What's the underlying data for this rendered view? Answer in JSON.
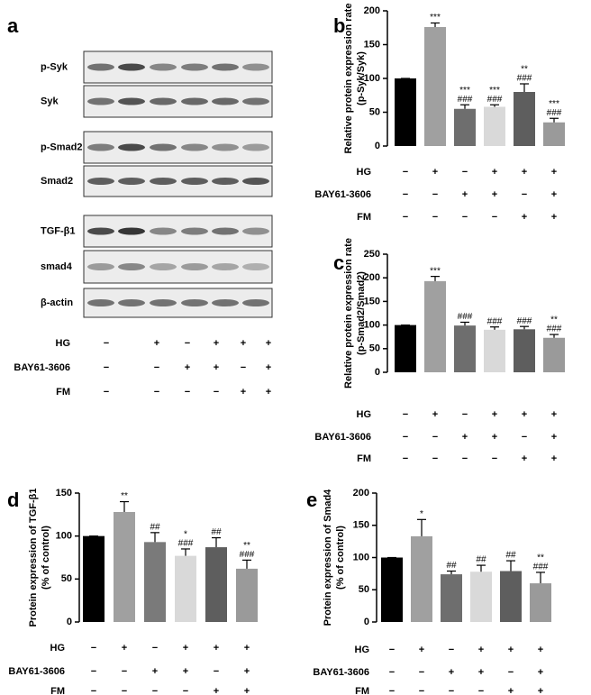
{
  "panel_a": {
    "label": "a",
    "blots": [
      "p-Syk",
      "Syk",
      "p-Smad2",
      "Smad2",
      "TGF-β1",
      "smad4",
      "β-actin"
    ],
    "treatments": [
      {
        "name": "HG",
        "signs": [
          "−",
          "+",
          "−",
          "+",
          "+",
          "+"
        ]
      },
      {
        "name": "BAY61-3606",
        "signs": [
          "−",
          "−",
          "+",
          "+",
          "−",
          "+"
        ]
      },
      {
        "name": "FM",
        "signs": [
          "−",
          "−",
          "−",
          "−",
          "+",
          "+"
        ]
      }
    ]
  },
  "chart_data": [
    {
      "type": "bar",
      "label": "b",
      "ylabel": [
        "Relative protein expression rate",
        "(p-Syk/Syk)"
      ],
      "values": [
        100,
        176,
        55,
        58,
        80,
        35
      ],
      "errors": [
        0,
        6,
        6,
        3,
        12,
        6
      ],
      "colors": [
        "#000000",
        "#a0a0a0",
        "#6e6e6e",
        "#d9d9d9",
        "#5e5e5e",
        "#9a9a9a"
      ],
      "annotations": [
        [],
        [
          "***"
        ],
        [
          "***",
          "###"
        ],
        [
          "***",
          "###"
        ],
        [
          "**",
          "###"
        ],
        [
          "***",
          "###"
        ]
      ],
      "ylim": [
        0,
        200
      ],
      "yticks": [
        0,
        50,
        100,
        150,
        200
      ],
      "treatments": [
        {
          "name": "HG",
          "signs": [
            "−",
            "+",
            "−",
            "+",
            "+",
            "+"
          ]
        },
        {
          "name": "BAY61-3606",
          "signs": [
            "−",
            "−",
            "+",
            "+",
            "−",
            "+"
          ]
        },
        {
          "name": "FM",
          "signs": [
            "−",
            "−",
            "−",
            "−",
            "+",
            "+"
          ]
        }
      ]
    },
    {
      "type": "bar",
      "label": "c",
      "ylabel": [
        "Relative protein expression rate",
        "(p-Smad2/Smad2)"
      ],
      "values": [
        100,
        193,
        99,
        90,
        91,
        73
      ],
      "errors": [
        0,
        10,
        7,
        6,
        6,
        7
      ],
      "colors": [
        "#000000",
        "#a0a0a0",
        "#6e6e6e",
        "#d9d9d9",
        "#5e5e5e",
        "#9a9a9a"
      ],
      "annotations": [
        [],
        [
          "***"
        ],
        [
          "###"
        ],
        [
          "###"
        ],
        [
          "###"
        ],
        [
          "**",
          "###"
        ]
      ],
      "ylim": [
        0,
        250
      ],
      "yticks": [
        0,
        50,
        100,
        150,
        200,
        250
      ],
      "treatments": [
        {
          "name": "HG",
          "signs": [
            "−",
            "+",
            "−",
            "+",
            "+",
            "+"
          ]
        },
        {
          "name": "BAY61-3606",
          "signs": [
            "−",
            "−",
            "+",
            "+",
            "−",
            "+"
          ]
        },
        {
          "name": "FM",
          "signs": [
            "−",
            "−",
            "−",
            "−",
            "+",
            "+"
          ]
        }
      ]
    },
    {
      "type": "bar",
      "label": "d",
      "ylabel": [
        "Protein expression of TGF-β1",
        "(% of control)"
      ],
      "values": [
        100,
        128,
        93,
        77,
        87,
        62
      ],
      "errors": [
        0,
        12,
        11,
        8,
        11,
        10
      ],
      "colors": [
        "#000000",
        "#a0a0a0",
        "#7a7a7a",
        "#d9d9d9",
        "#5e5e5e",
        "#9a9a9a"
      ],
      "annotations": [
        [],
        [
          "**"
        ],
        [
          "##"
        ],
        [
          "*",
          "###"
        ],
        [
          "##"
        ],
        [
          "**",
          "###"
        ]
      ],
      "ylim": [
        0,
        150
      ],
      "yticks": [
        0,
        50,
        100,
        150
      ],
      "treatments": [
        {
          "name": "HG",
          "signs": [
            "−",
            "+",
            "−",
            "+",
            "+",
            "+"
          ]
        },
        {
          "name": "BAY61-3606",
          "signs": [
            "−",
            "−",
            "+",
            "+",
            "−",
            "+"
          ]
        },
        {
          "name": "FM",
          "signs": [
            "−",
            "−",
            "−",
            "−",
            "+",
            "+"
          ]
        }
      ]
    },
    {
      "type": "bar",
      "label": "e",
      "ylabel": [
        "Protein expression of Smad4",
        "(% of control)"
      ],
      "values": [
        100,
        133,
        74,
        78,
        79,
        60
      ],
      "errors": [
        0,
        26,
        5,
        10,
        16,
        17
      ],
      "colors": [
        "#000000",
        "#a0a0a0",
        "#6e6e6e",
        "#d9d9d9",
        "#5e5e5e",
        "#9a9a9a"
      ],
      "annotations": [
        [],
        [
          "*"
        ],
        [
          "##"
        ],
        [
          "##"
        ],
        [
          "##"
        ],
        [
          "**",
          "###"
        ]
      ],
      "ylim": [
        0,
        200
      ],
      "yticks": [
        0,
        50,
        100,
        150,
        200
      ],
      "treatments": [
        {
          "name": "HG",
          "signs": [
            "−",
            "+",
            "−",
            "+",
            "+",
            "+"
          ]
        },
        {
          "name": "BAY61-3606",
          "signs": [
            "−",
            "−",
            "+",
            "+",
            "−",
            "+"
          ]
        },
        {
          "name": "FM",
          "signs": [
            "−",
            "−",
            "−",
            "−",
            "+",
            "+"
          ]
        }
      ]
    }
  ]
}
